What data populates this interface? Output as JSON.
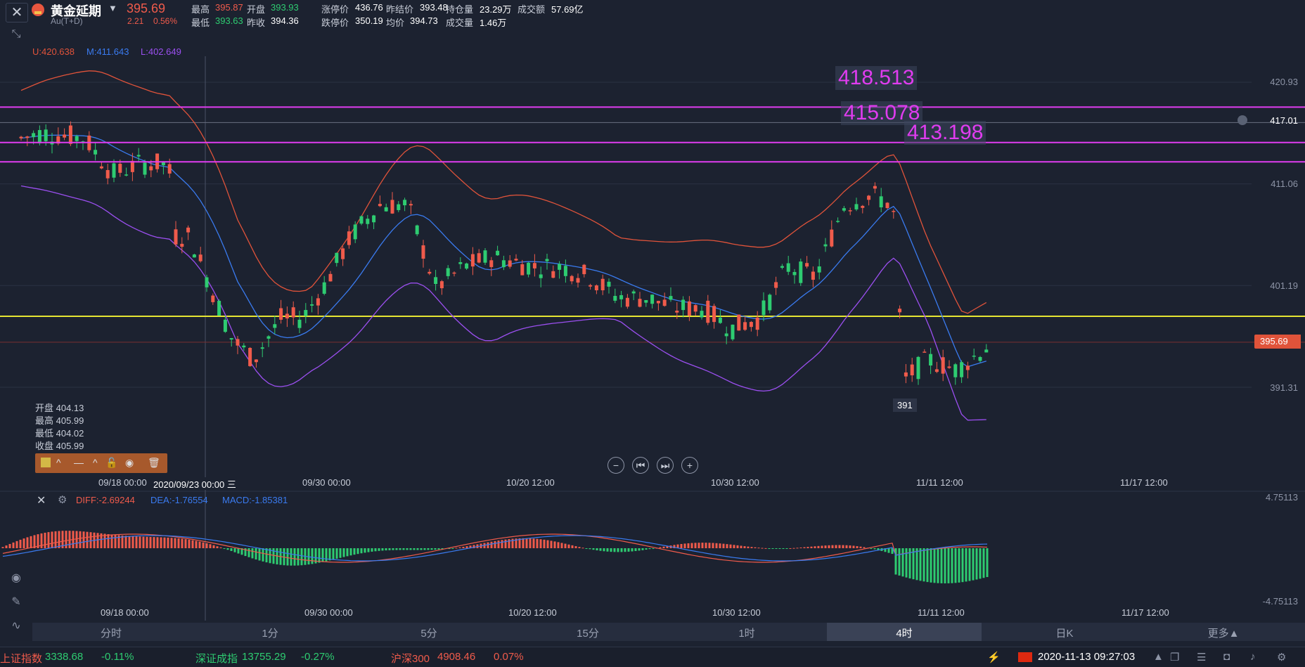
{
  "header": {
    "name": "黄金延期",
    "code": "Au(T+D)",
    "price": "395.69",
    "change": "2.21",
    "change_pct": "0.56%",
    "quotes": [
      {
        "label": "最高",
        "value": "395.87",
        "color": "red"
      },
      {
        "label": "开盘",
        "value": "393.93",
        "color": "green"
      },
      {
        "label": "涨停价",
        "value": "436.76",
        "color": "white"
      },
      {
        "label": "昨结价",
        "value": "393.48",
        "color": "white"
      },
      {
        "label": "持仓量",
        "value": "23.29万",
        "color": "white"
      },
      {
        "label": "成交额",
        "value": "57.69亿",
        "color": "white"
      },
      {
        "label": "最低",
        "value": "393.63",
        "color": "green"
      },
      {
        "label": "昨收",
        "value": "394.36",
        "color": "white"
      },
      {
        "label": "跌停价",
        "value": "350.19",
        "color": "white"
      },
      {
        "label": "均价",
        "value": "394.73",
        "color": "white"
      },
      {
        "label": "成交量",
        "value": "1.46万",
        "color": "white"
      }
    ]
  },
  "boll_legend": {
    "u": "U:420.638",
    "m": "M:411.643",
    "l": "L:402.649"
  },
  "ohlc_box": {
    "open": "开盘 404.13",
    "high": "最高 405.99",
    "low": "最低 404.02",
    "close": "收盘 405.99"
  },
  "price_axis": [
    "420.93",
    "417.01",
    "411.06",
    "401.19",
    "395.69",
    "391.31"
  ],
  "horizontal_lines": [
    {
      "label": "418.513",
      "value": 418.513
    },
    {
      "label": "415.078",
      "value": 415.078
    },
    {
      "label": "413.198",
      "value": 413.198
    }
  ],
  "low_marker": "391",
  "time_axis": [
    "09/18 00:00",
    "2020/09/23 00:00 三",
    "09/30 00:00",
    "10/20 12:00",
    "10/30 12:00",
    "11/11 12:00",
    "11/17 12:00"
  ],
  "macd_legend": {
    "diff": "DIFF:-2.69244",
    "dea": "DEA:-1.76554",
    "macd": "MACD:-1.85381"
  },
  "macd_axis": {
    "top": "4.75113",
    "bottom": "-4.75113"
  },
  "macd_time_axis": [
    "09/18 00:00",
    "09/30 00:00",
    "10/20 12:00",
    "10/30 12:00",
    "11/11 12:00",
    "11/17 12:00"
  ],
  "timeframes": [
    "分时",
    "1分",
    "5分",
    "15分",
    "1时",
    "4时",
    "日K",
    "更多▲"
  ],
  "active_timeframe": "4时",
  "status_bar": {
    "sh_name": "上证指数",
    "sh_val": "3338.68",
    "sh_chg": "-0.11%",
    "sz_name": "深证成指",
    "sz_val": "13755.29",
    "sz_chg": "-0.27%",
    "hs_name": "沪深300",
    "hs_val": "4908.46",
    "hs_chg": "0.07%",
    "datetime": "2020-11-13 09:27:03"
  },
  "colors": {
    "up": "#f05b4b",
    "down": "#2ecc71",
    "boll_upper": "#e0533a",
    "boll_mid": "#3a7bf0",
    "boll_lower": "#9b4ff0",
    "hline": "#e03cf0",
    "yellow": "#e6e632"
  }
}
